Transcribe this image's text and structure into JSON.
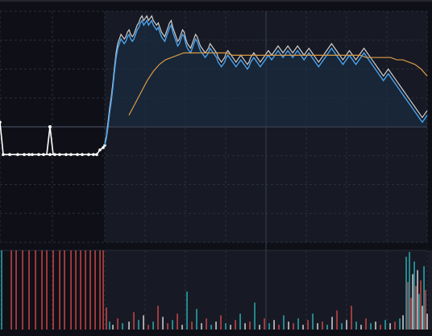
{
  "chart_data": {
    "type": "line",
    "grid": true,
    "colors": {
      "background": "#0f1017",
      "background_recent": "#171a24",
      "grid": "#2a2e3a",
      "price_line": "#4aa3ef",
      "price_fill": "#1a3147",
      "avg_line": "#cfcfcf",
      "ma_line": "#d99a45",
      "early_line": "#ffffff",
      "volume_up": "#e64e4e",
      "volume_down": "#2fc0c9",
      "volume_neutral": "#f1f1f1"
    },
    "price_panel": {
      "ylim": [
        0,
        100
      ],
      "reference_level": 50,
      "early_series": {
        "x": [
          0,
          2,
          6,
          11,
          15,
          18,
          20,
          24,
          27,
          31,
          34,
          37,
          41,
          44,
          48,
          51,
          55,
          58,
          60,
          62,
          64,
          65
        ],
        "values": [
          52,
          38,
          38,
          38,
          38,
          38,
          38,
          38,
          38,
          38,
          38,
          38,
          38,
          38,
          38,
          38,
          38,
          38,
          38,
          40,
          41,
          42
        ]
      },
      "early_spike": {
        "x": [
          29,
          31,
          33
        ],
        "values": [
          38,
          50,
          38
        ]
      },
      "main_series_x_start": 65,
      "main_series_x_end": 265,
      "price": [
        42,
        45,
        50,
        56,
        61,
        67,
        74,
        80,
        84,
        86,
        88,
        87,
        86,
        87,
        89,
        90,
        88,
        87,
        88,
        90,
        92,
        93,
        95,
        96,
        94,
        95,
        96,
        94,
        95,
        96,
        94,
        93,
        92,
        93,
        91,
        89,
        88,
        87,
        89,
        91,
        93,
        94,
        91,
        89,
        87,
        85,
        86,
        88,
        90,
        89,
        86,
        84,
        83,
        82,
        84,
        86,
        88,
        87,
        85,
        83,
        82,
        81,
        80,
        81,
        82,
        84,
        83,
        82,
        81,
        80,
        78,
        77,
        76,
        77,
        78,
        80,
        81,
        80,
        79,
        78,
        77,
        76,
        77,
        78,
        79,
        78,
        77,
        76,
        75,
        76,
        78,
        79,
        80,
        79,
        78,
        77,
        76,
        77,
        78,
        79,
        80,
        81,
        80,
        79,
        80,
        81,
        82,
        83,
        82,
        81,
        80,
        81,
        82,
        83,
        82,
        81,
        80,
        81,
        82,
        83,
        82,
        81,
        80,
        79,
        80,
        81,
        82,
        81,
        80,
        79,
        78,
        77,
        76,
        77,
        78,
        79,
        80,
        81,
        82,
        83,
        84,
        83,
        82,
        81,
        80,
        79,
        78,
        77,
        78,
        79,
        80,
        81,
        80,
        79,
        78,
        77,
        78,
        79,
        80,
        81,
        82,
        81,
        80,
        79,
        78,
        77,
        76,
        75,
        74,
        73,
        72,
        71,
        70,
        71,
        72,
        73,
        72,
        71,
        70,
        69,
        68,
        67,
        66,
        65,
        64,
        63,
        62,
        61,
        60,
        59,
        58,
        57,
        56,
        55,
        54,
        53,
        52,
        53,
        54,
        55
      ],
      "avg": [
        43,
        46,
        52,
        58,
        63,
        69,
        76,
        82,
        86,
        88,
        90,
        89,
        88,
        89,
        91,
        92,
        90,
        89,
        90,
        92,
        94,
        95,
        97,
        98,
        96,
        97,
        98,
        96,
        97,
        98,
        96,
        95,
        94,
        95,
        93,
        91,
        90,
        89,
        91,
        93,
        95,
        96,
        93,
        91,
        89,
        87,
        88,
        90,
        92,
        91,
        88,
        86,
        85,
        84,
        86,
        88,
        90,
        89,
        87,
        85,
        84,
        83,
        82,
        83,
        84,
        86,
        85,
        84,
        83,
        82,
        80,
        79,
        78,
        79,
        80,
        82,
        83,
        82,
        81,
        80,
        79,
        78,
        79,
        80,
        81,
        80,
        79,
        78,
        77,
        78,
        80,
        81,
        82,
        81,
        80,
        79,
        78,
        79,
        80,
        81,
        82,
        83,
        82,
        81,
        82,
        83,
        84,
        85,
        84,
        83,
        82,
        83,
        84,
        85,
        84,
        83,
        82,
        83,
        84,
        85,
        84,
        83,
        82,
        81,
        82,
        83,
        84,
        83,
        82,
        81,
        80,
        79,
        78,
        79,
        80,
        81,
        82,
        83,
        84,
        85,
        86,
        85,
        84,
        83,
        82,
        81,
        80,
        79,
        80,
        81,
        82,
        83,
        82,
        81,
        80,
        79,
        80,
        81,
        82,
        83,
        84,
        83,
        82,
        81,
        80,
        79,
        78,
        77,
        76,
        75,
        74,
        73,
        72,
        73,
        74,
        75,
        74,
        73,
        72,
        71,
        70,
        69,
        68,
        67,
        66,
        65,
        64,
        63,
        62,
        61,
        60,
        59,
        58,
        57,
        56,
        55,
        54,
        55,
        56,
        57
      ],
      "ma_x_start": 80,
      "ma": [
        55,
        60,
        65,
        70,
        74,
        77,
        79,
        80,
        81,
        82,
        82,
        82,
        82,
        82,
        82,
        82,
        82,
        81,
        81,
        81,
        81,
        81,
        81,
        81,
        81,
        81,
        81,
        81,
        81,
        81,
        81,
        81,
        81,
        81,
        81,
        81,
        81,
        81,
        81,
        80,
        80,
        80,
        80,
        80,
        79,
        79,
        78,
        77,
        75,
        72
      ],
      "ma_x_end": 265
    },
    "volume_panel": {
      "ylim": [
        0,
        100
      ],
      "bars": [
        {
          "x": 1,
          "v": 100,
          "c": "down"
        },
        {
          "x": 7,
          "v": 100,
          "c": "up"
        },
        {
          "x": 10,
          "v": 100,
          "c": "up"
        },
        {
          "x": 14,
          "v": 100,
          "c": "up"
        },
        {
          "x": 18,
          "v": 100,
          "c": "up"
        },
        {
          "x": 22,
          "v": 100,
          "c": "up"
        },
        {
          "x": 26,
          "v": 100,
          "c": "up"
        },
        {
          "x": 29,
          "v": 100,
          "c": "up"
        },
        {
          "x": 33,
          "v": 100,
          "c": "up"
        },
        {
          "x": 37,
          "v": 100,
          "c": "up"
        },
        {
          "x": 40,
          "v": 100,
          "c": "up"
        },
        {
          "x": 44,
          "v": 100,
          "c": "up"
        },
        {
          "x": 47,
          "v": 100,
          "c": "up"
        },
        {
          "x": 50,
          "v": 100,
          "c": "up"
        },
        {
          "x": 53,
          "v": 100,
          "c": "up"
        },
        {
          "x": 56,
          "v": 100,
          "c": "up"
        },
        {
          "x": 59,
          "v": 100,
          "c": "up"
        },
        {
          "x": 62,
          "v": 100,
          "c": "up"
        },
        {
          "x": 64,
          "v": 100,
          "c": "up"
        },
        {
          "x": 66,
          "v": 28,
          "c": "up"
        },
        {
          "x": 68,
          "v": 10,
          "c": "down"
        },
        {
          "x": 70,
          "v": 6,
          "c": "neutral"
        },
        {
          "x": 73,
          "v": 14,
          "c": "up"
        },
        {
          "x": 76,
          "v": 8,
          "c": "down"
        },
        {
          "x": 80,
          "v": 10,
          "c": "neutral"
        },
        {
          "x": 83,
          "v": 22,
          "c": "up"
        },
        {
          "x": 86,
          "v": 12,
          "c": "down"
        },
        {
          "x": 89,
          "v": 18,
          "c": "neutral"
        },
        {
          "x": 92,
          "v": 6,
          "c": "up"
        },
        {
          "x": 95,
          "v": 10,
          "c": "down"
        },
        {
          "x": 98,
          "v": 30,
          "c": "up"
        },
        {
          "x": 101,
          "v": 16,
          "c": "neutral"
        },
        {
          "x": 104,
          "v": 8,
          "c": "up"
        },
        {
          "x": 107,
          "v": 12,
          "c": "down"
        },
        {
          "x": 110,
          "v": 20,
          "c": "up"
        },
        {
          "x": 113,
          "v": 6,
          "c": "neutral"
        },
        {
          "x": 116,
          "v": 48,
          "c": "down"
        },
        {
          "x": 119,
          "v": 10,
          "c": "up"
        },
        {
          "x": 122,
          "v": 26,
          "c": "down"
        },
        {
          "x": 125,
          "v": 8,
          "c": "neutral"
        },
        {
          "x": 128,
          "v": 14,
          "c": "up"
        },
        {
          "x": 131,
          "v": 6,
          "c": "down"
        },
        {
          "x": 134,
          "v": 10,
          "c": "neutral"
        },
        {
          "x": 137,
          "v": 18,
          "c": "up"
        },
        {
          "x": 140,
          "v": 8,
          "c": "down"
        },
        {
          "x": 143,
          "v": 6,
          "c": "neutral"
        },
        {
          "x": 146,
          "v": 12,
          "c": "up"
        },
        {
          "x": 149,
          "v": 20,
          "c": "down"
        },
        {
          "x": 152,
          "v": 8,
          "c": "neutral"
        },
        {
          "x": 155,
          "v": 10,
          "c": "up"
        },
        {
          "x": 158,
          "v": 34,
          "c": "down"
        },
        {
          "x": 161,
          "v": 6,
          "c": "neutral"
        },
        {
          "x": 164,
          "v": 14,
          "c": "up"
        },
        {
          "x": 167,
          "v": 8,
          "c": "down"
        },
        {
          "x": 170,
          "v": 12,
          "c": "neutral"
        },
        {
          "x": 173,
          "v": 6,
          "c": "up"
        },
        {
          "x": 176,
          "v": 18,
          "c": "down"
        },
        {
          "x": 179,
          "v": 10,
          "c": "neutral"
        },
        {
          "x": 182,
          "v": 8,
          "c": "up"
        },
        {
          "x": 185,
          "v": 14,
          "c": "down"
        },
        {
          "x": 188,
          "v": 6,
          "c": "neutral"
        },
        {
          "x": 191,
          "v": 12,
          "c": "up"
        },
        {
          "x": 194,
          "v": 20,
          "c": "down"
        },
        {
          "x": 197,
          "v": 8,
          "c": "neutral"
        },
        {
          "x": 200,
          "v": 10,
          "c": "up"
        },
        {
          "x": 203,
          "v": 6,
          "c": "down"
        },
        {
          "x": 206,
          "v": 16,
          "c": "neutral"
        },
        {
          "x": 209,
          "v": 24,
          "c": "up"
        },
        {
          "x": 212,
          "v": 8,
          "c": "down"
        },
        {
          "x": 215,
          "v": 12,
          "c": "neutral"
        },
        {
          "x": 218,
          "v": 30,
          "c": "up"
        },
        {
          "x": 221,
          "v": 10,
          "c": "down"
        },
        {
          "x": 224,
          "v": 6,
          "c": "neutral"
        },
        {
          "x": 227,
          "v": 14,
          "c": "up"
        },
        {
          "x": 230,
          "v": 8,
          "c": "down"
        },
        {
          "x": 233,
          "v": 10,
          "c": "neutral"
        },
        {
          "x": 236,
          "v": 6,
          "c": "up"
        },
        {
          "x": 239,
          "v": 12,
          "c": "down"
        },
        {
          "x": 242,
          "v": 8,
          "c": "neutral"
        },
        {
          "x": 245,
          "v": 10,
          "c": "up"
        },
        {
          "x": 248,
          "v": 14,
          "c": "down"
        },
        {
          "x": 250,
          "v": 18,
          "c": "neutral"
        },
        {
          "x": 252,
          "v": 92,
          "c": "down"
        },
        {
          "x": 253,
          "v": 60,
          "c": "up"
        },
        {
          "x": 254,
          "v": 98,
          "c": "down"
        },
        {
          "x": 255,
          "v": 40,
          "c": "up"
        },
        {
          "x": 256,
          "v": 70,
          "c": "neutral"
        },
        {
          "x": 257,
          "v": 86,
          "c": "down"
        },
        {
          "x": 258,
          "v": 55,
          "c": "up"
        },
        {
          "x": 259,
          "v": 75,
          "c": "neutral"
        },
        {
          "x": 260,
          "v": 45,
          "c": "down"
        },
        {
          "x": 261,
          "v": 62,
          "c": "up"
        },
        {
          "x": 262,
          "v": 30,
          "c": "neutral"
        },
        {
          "x": 263,
          "v": 80,
          "c": "down"
        },
        {
          "x": 264,
          "v": 50,
          "c": "up"
        },
        {
          "x": 265,
          "v": 20,
          "c": "neutral"
        }
      ]
    }
  }
}
